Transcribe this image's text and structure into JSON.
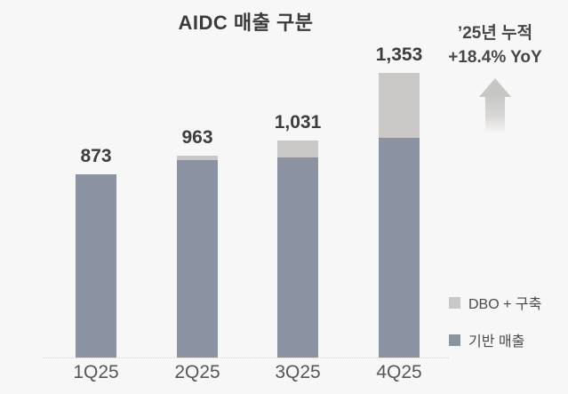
{
  "title": "AIDC 매출 구분",
  "annotation": {
    "line1": "’25년 누적",
    "line2": "+18.4% YoY"
  },
  "legend": [
    {
      "label": "DBO + 구축",
      "color": "#c9c8c6"
    },
    {
      "label": "기반 매출",
      "color": "#8b93a3"
    }
  ],
  "chart_data": {
    "type": "bar",
    "stacked": true,
    "title": "AIDC 매출 구분",
    "categories": [
      "1Q25",
      "2Q25",
      "3Q25",
      "4Q25"
    ],
    "series": [
      {
        "name": "기반 매출",
        "color": "#8b93a3",
        "values": [
          873,
          940,
          951,
          1044
        ]
      },
      {
        "name": "DBO + 구축",
        "color": "#c9c8c6",
        "values": [
          0,
          23,
          80,
          309
        ]
      }
    ],
    "totals": [
      873,
      963,
      1031,
      1353
    ],
    "total_labels": [
      "873",
      "963",
      "1,031",
      "1,353"
    ],
    "xlabel": "",
    "ylabel": "",
    "ylim": [
      0,
      1400
    ],
    "grid": false,
    "value_labels": "totals shown above each bar",
    "legend_position": "right-bottom",
    "annotation": "’25년 누적 +18.4% YoY"
  },
  "colors": {
    "background": "#f8f7f7",
    "bar_base": "#8b93a3",
    "bar_dbo": "#c9c8c6",
    "axis_line": "#d6d5d4",
    "title_text": "#3a3a3a",
    "value_text": "#3d3d3d",
    "xlabel_text": "#55575a",
    "annotation_text": "#474747",
    "arrow": "#c6c6c4"
  }
}
